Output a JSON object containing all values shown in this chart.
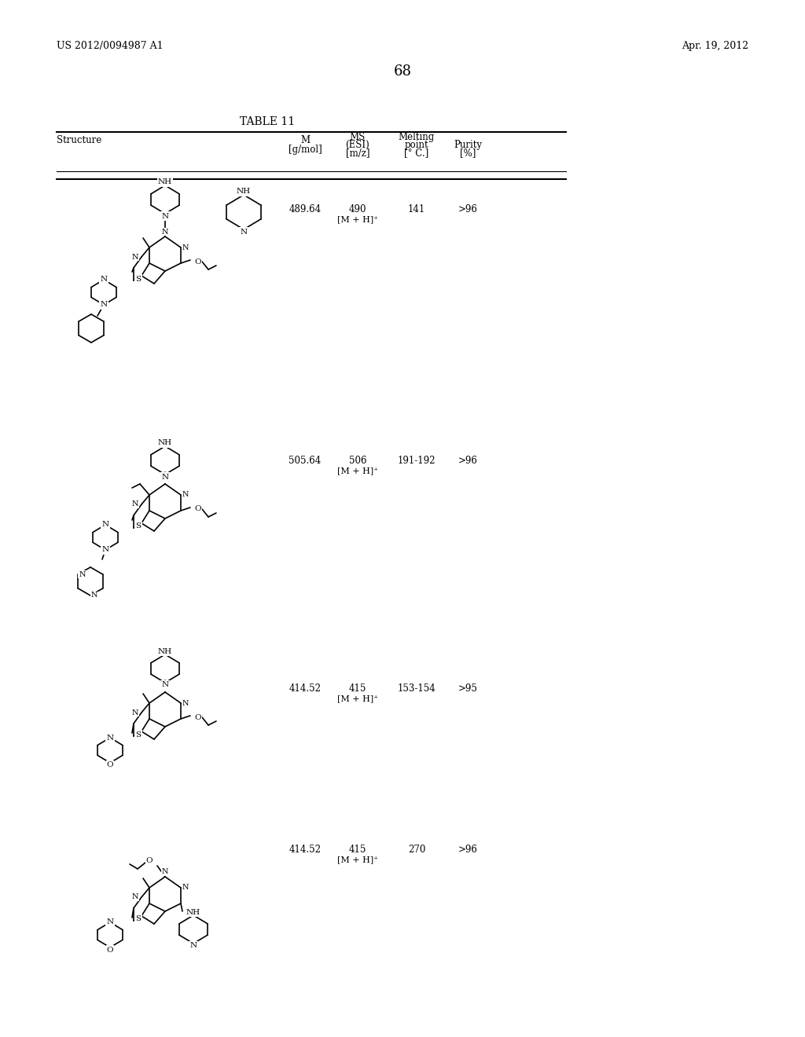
{
  "background_color": "#ffffff",
  "page_number": "68",
  "header_left": "US 2012/0094987 A1",
  "header_right": "Apr. 19, 2012",
  "table_title": "TABLE 11",
  "col_headers": [
    "Structure",
    "M\n[g/mol]",
    "MS\n(ESI)\n[m/z]",
    "Melting\npoint\n[° C.]",
    "Purity\n[%]"
  ],
  "rows": [
    {
      "M": "489.64",
      "MS": "490\n[M + H]⁺",
      "mp": "141",
      "purity": ">96"
    },
    {
      "M": "505.64",
      "MS": "506\n[M + H]⁺",
      "mp": "191-192",
      "purity": ">96"
    },
    {
      "M": "414.52",
      "MS": "415\n[M + H]⁺",
      "mp": "153-154",
      "purity": ">95"
    },
    {
      "M": "414.52",
      "MS": "415\n[M + H]⁺",
      "mp": "270",
      "purity": ">96"
    }
  ],
  "image_path": null
}
